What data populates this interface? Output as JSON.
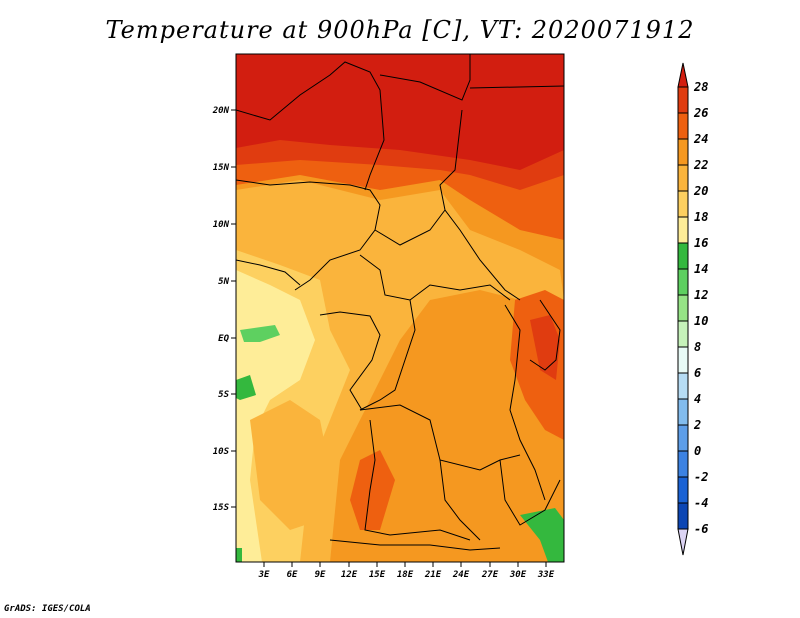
{
  "title": "Temperature at 900hPa [C], VT: 2020071912",
  "credit": "GrADS: IGES/COLA",
  "map": {
    "variable": "Temperature at 900hPa",
    "units": "C",
    "valid_time": "2020071912",
    "lat_ticks": [
      "20N",
      "15N",
      "10N",
      "5N",
      "EQ",
      "5S",
      "10S",
      "15S"
    ],
    "lon_ticks": [
      "3E",
      "6E",
      "9E",
      "12E",
      "15E",
      "18E",
      "21E",
      "24E",
      "27E",
      "30E",
      "33E"
    ]
  },
  "colorbar": {
    "labels": [
      "28",
      "26",
      "24",
      "22",
      "20",
      "18",
      "16",
      "14",
      "12",
      "10",
      "8",
      "6",
      "4",
      "2",
      "0",
      "-2",
      "-4",
      "-6"
    ],
    "colors": {
      "c28": "#d21e10",
      "c26": "#e03c10",
      "c24": "#ee6010",
      "c22": "#f59820",
      "c20": "#fab43c",
      "c18": "#fdd060",
      "c16": "#feed98",
      "c14": "#34b83e",
      "c12": "#5ed060",
      "c10": "#96e486",
      "c8": "#c6f2ba",
      "c6": "#e8faf6",
      "c4": "#b6dcf4",
      "c2": "#82bcee",
      "c0": "#5e9ee8",
      "cm2": "#3c82e2",
      "cm4": "#1a62d4",
      "cm6": "#0c46b4",
      "cm8": "#0a1e84",
      "clow": "#dcd4f4"
    }
  }
}
